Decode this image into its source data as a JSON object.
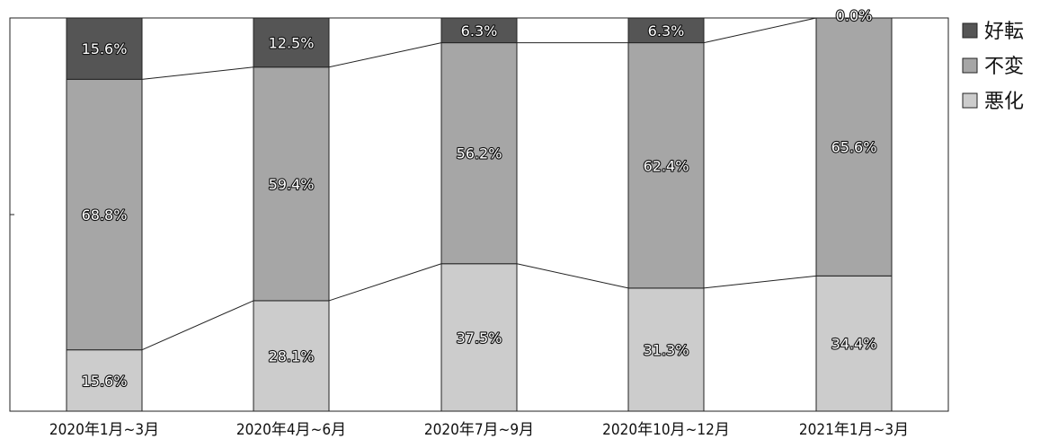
{
  "chart_data": {
    "type": "bar",
    "stacked": true,
    "percent_stacked": true,
    "categories": [
      "2020年1月~3月",
      "2020年4月~6月",
      "2020年7月~9月",
      "2020年10月~12月",
      "2021年1月~3月"
    ],
    "series": [
      {
        "name": "悪化",
        "color": "#cccccc",
        "values": [
          15.6,
          28.1,
          37.5,
          31.3,
          34.4
        ],
        "labels": [
          "15.6%",
          "28.1%",
          "37.5%",
          "31.3%",
          "34.4%"
        ]
      },
      {
        "name": "不変",
        "color": "#a6a6a6",
        "values": [
          68.8,
          59.4,
          56.2,
          62.4,
          65.6
        ],
        "labels": [
          "68.8%",
          "59.4%",
          "56.2%",
          "62.4%",
          "65.6%"
        ]
      },
      {
        "name": "好転",
        "color": "#555555",
        "values": [
          15.6,
          12.5,
          6.3,
          6.3,
          0.0
        ],
        "labels": [
          "15.6%",
          "12.5%",
          "6.3%",
          "6.3%",
          "0.0%"
        ]
      }
    ],
    "ylim": [
      0,
      100
    ],
    "title": "",
    "xlabel": "",
    "ylabel": "",
    "legend": {
      "placement": "right",
      "items": [
        "好転",
        "不変",
        "悪化"
      ]
    },
    "series_lines": true
  }
}
